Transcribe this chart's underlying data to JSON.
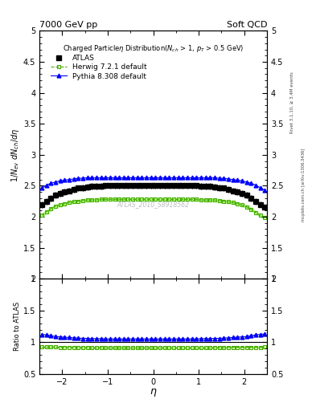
{
  "title_left": "7000 GeV pp",
  "title_right": "Soft QCD",
  "plot_title": "Charged Particleη Distribution(N_{ch} > 1, p_{T} > 0.5 GeV)",
  "xlabel": "η",
  "ylabel_main": "1/N_{ev} dN_{ch}/dη",
  "ylabel_ratio": "Ratio to ATLAS",
  "watermark": "ATLAS_2010_S8918562",
  "right_label": "mcplots.cern.ch [arXiv:1306.3436]",
  "right_label2": "Rivet 3.1.10, ≥ 3.4M events",
  "eta_values": [
    -2.45,
    -2.35,
    -2.25,
    -2.15,
    -2.05,
    -1.95,
    -1.85,
    -1.75,
    -1.65,
    -1.55,
    -1.45,
    -1.35,
    -1.25,
    -1.15,
    -1.05,
    -0.95,
    -0.85,
    -0.75,
    -0.65,
    -0.55,
    -0.45,
    -0.35,
    -0.25,
    -0.15,
    -0.05,
    0.05,
    0.15,
    0.25,
    0.35,
    0.45,
    0.55,
    0.65,
    0.75,
    0.85,
    0.95,
    1.05,
    1.15,
    1.25,
    1.35,
    1.45,
    1.55,
    1.65,
    1.75,
    1.85,
    1.95,
    2.05,
    2.15,
    2.25,
    2.35,
    2.45
  ],
  "atlas_values": [
    2.19,
    2.25,
    2.3,
    2.35,
    2.38,
    2.4,
    2.42,
    2.44,
    2.46,
    2.47,
    2.48,
    2.49,
    2.49,
    2.49,
    2.5,
    2.5,
    2.5,
    2.5,
    2.5,
    2.5,
    2.5,
    2.5,
    2.5,
    2.5,
    2.5,
    2.5,
    2.5,
    2.5,
    2.5,
    2.5,
    2.5,
    2.5,
    2.5,
    2.5,
    2.5,
    2.49,
    2.49,
    2.49,
    2.48,
    2.47,
    2.46,
    2.44,
    2.42,
    2.4,
    2.38,
    2.35,
    2.3,
    2.25,
    2.2,
    2.15
  ],
  "atlas_err": [
    0.05,
    0.05,
    0.05,
    0.05,
    0.05,
    0.05,
    0.05,
    0.05,
    0.05,
    0.05,
    0.05,
    0.05,
    0.05,
    0.05,
    0.05,
    0.05,
    0.05,
    0.05,
    0.05,
    0.05,
    0.05,
    0.05,
    0.05,
    0.05,
    0.05,
    0.05,
    0.05,
    0.05,
    0.05,
    0.05,
    0.05,
    0.05,
    0.05,
    0.05,
    0.05,
    0.05,
    0.05,
    0.05,
    0.05,
    0.05,
    0.05,
    0.05,
    0.05,
    0.05,
    0.05,
    0.05,
    0.05,
    0.05,
    0.05,
    0.05
  ],
  "herwig_values": [
    2.02,
    2.08,
    2.13,
    2.17,
    2.19,
    2.21,
    2.23,
    2.24,
    2.25,
    2.26,
    2.27,
    2.27,
    2.27,
    2.28,
    2.28,
    2.28,
    2.28,
    2.28,
    2.28,
    2.28,
    2.28,
    2.28,
    2.28,
    2.28,
    2.28,
    2.28,
    2.28,
    2.28,
    2.28,
    2.28,
    2.28,
    2.28,
    2.28,
    2.28,
    2.28,
    2.27,
    2.27,
    2.27,
    2.27,
    2.26,
    2.25,
    2.24,
    2.23,
    2.21,
    2.19,
    2.16,
    2.12,
    2.07,
    2.02,
    1.99
  ],
  "pythia_values": [
    2.46,
    2.51,
    2.54,
    2.56,
    2.58,
    2.59,
    2.6,
    2.61,
    2.62,
    2.62,
    2.63,
    2.63,
    2.63,
    2.63,
    2.63,
    2.63,
    2.63,
    2.63,
    2.63,
    2.63,
    2.63,
    2.63,
    2.63,
    2.63,
    2.63,
    2.63,
    2.63,
    2.63,
    2.63,
    2.63,
    2.63,
    2.63,
    2.63,
    2.63,
    2.63,
    2.63,
    2.63,
    2.63,
    2.63,
    2.62,
    2.62,
    2.61,
    2.6,
    2.59,
    2.58,
    2.56,
    2.54,
    2.51,
    2.47,
    2.43
  ],
  "ylim_main": [
    1.0,
    5.0
  ],
  "ylim_ratio": [
    0.5,
    2.0
  ],
  "xlim": [
    -2.5,
    2.5
  ],
  "atlas_color": "black",
  "herwig_color": "#44aa00",
  "pythia_color": "blue",
  "herwig_band_color": "#bbff88",
  "pythia_band_color": "#ffff99",
  "background_color": "white"
}
